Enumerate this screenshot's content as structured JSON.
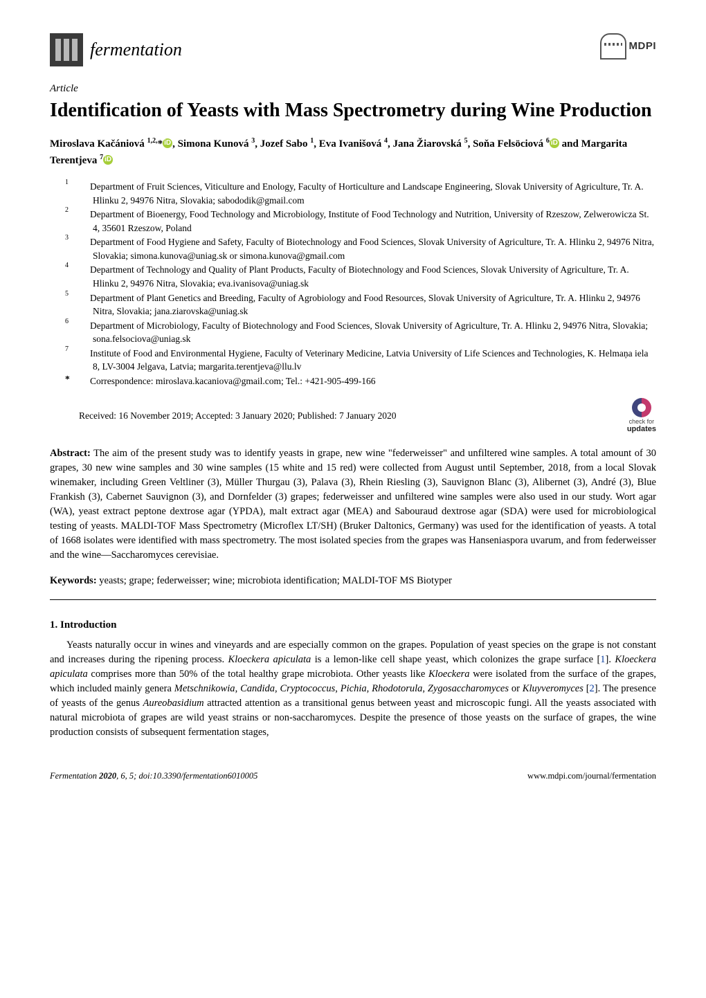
{
  "journal": {
    "name": "fermentation",
    "mdpi_text": "MDPI"
  },
  "article_type": "Article",
  "title": "Identification of Yeasts with Mass Spectrometry during Wine Production",
  "authors_html": "Miroslava Kačániová <sup>1,2,</sup>*<span class='orcid' data-name='orcid-icon' data-interactable='false'>iD</span>, Simona Kunová <sup>3</sup>, Jozef Sabo <sup>1</sup>, Eva Ivanišová <sup>4</sup>, Jana Žiarovská <sup>5</sup>, Soňa Felsöciová <sup>6</sup><span class='orcid' data-name='orcid-icon' data-interactable='false'>iD</span> and Margarita Terentjeva <sup>7</sup><span class='orcid' data-name='orcid-icon' data-interactable='false'>iD</span>",
  "affiliations": [
    {
      "num": "1",
      "text": "Department of Fruit Sciences, Viticulture and Enology, Faculty of Horticulture and Landscape Engineering, Slovak University of Agriculture, Tr. A. Hlinku 2, 94976 Nitra, Slovakia; sabododik@gmail.com"
    },
    {
      "num": "2",
      "text": "Department of Bioenergy, Food Technology and Microbiology, Institute of Food Technology and Nutrition, University of Rzeszow, Zelwerowicza St. 4, 35601 Rzeszow, Poland"
    },
    {
      "num": "3",
      "text": "Department of Food Hygiene and Safety, Faculty of Biotechnology and Food Sciences, Slovak University of Agriculture, Tr. A. Hlinku 2, 94976 Nitra, Slovakia; simona.kunova@uniag.sk or simona.kunova@gmail.com"
    },
    {
      "num": "4",
      "text": "Department of Technology and Quality of Plant Products, Faculty of Biotechnology and Food Sciences, Slovak University of Agriculture, Tr. A. Hlinku 2, 94976 Nitra, Slovakia; eva.ivanisova@uniag.sk"
    },
    {
      "num": "5",
      "text": "Department of Plant Genetics and Breeding, Faculty of Agrobiology and Food Resources, Slovak University of Agriculture, Tr. A. Hlinku 2, 94976 Nitra, Slovakia; jana.ziarovska@uniag.sk"
    },
    {
      "num": "6",
      "text": "Department of Microbiology, Faculty of Biotechnology and Food Sciences, Slovak University of Agriculture, Tr. A. Hlinku 2, 94976 Nitra, Slovakia; sona.felsociova@uniag.sk"
    },
    {
      "num": "7",
      "text": "Institute of Food and Environmental Hygiene, Faculty of Veterinary Medicine, Latvia University of Life Sciences and Technologies, K. Helmaņa iela 8, LV-3004 Jelgava, Latvia; margarita.terentjeva@llu.lv"
    }
  ],
  "correspondence": {
    "marker": "*",
    "text": "Correspondence: miroslava.kacaniova@gmail.com; Tel.: +421-905-499-166"
  },
  "dates": "Received: 16 November 2019; Accepted: 3 January 2020; Published: 7 January 2020",
  "check_updates": {
    "line1": "check for",
    "line2": "updates"
  },
  "abstract": {
    "label": "Abstract:",
    "text": " The aim of the present study was to identify yeasts in grape, new wine \"federweisser\" and unfiltered wine samples. A total amount of 30 grapes, 30 new wine samples and 30 wine samples (15 white and 15 red) were collected from August until September, 2018, from a local Slovak winemaker, including Green Veltliner (3), Müller Thurgau (3), Palava (3), Rhein Riesling (3), Sauvignon Blanc (3), Alibernet (3), André (3), Blue Frankish (3), Cabernet Sauvignon (3), and Dornfelder (3) grapes; federweisser and unfiltered wine samples were also used in our study. Wort agar (WA), yeast extract peptone dextrose agar (YPDA), malt extract agar (MEA) and Sabouraud dextrose agar (SDA) were used for microbiological testing of yeasts. MALDI-TOF Mass Spectrometry (Microflex LT/SH) (Bruker Daltonics, Germany) was used for the identification of yeasts. A total of 1668 isolates were identified with mass spectrometry. The most isolated species from the grapes was Hanseniaspora uvarum, and from federweisser and the wine—Saccharomyces cerevisiae."
  },
  "keywords": {
    "label": "Keywords:",
    "text": " yeasts; grape; federweisser; wine; microbiota identification; MALDI-TOF MS Biotyper"
  },
  "section1": {
    "heading": "1. Introduction",
    "para_html": "Yeasts naturally occur in wines and vineyards and are especially common on the grapes. Population of yeast species on the grape is not constant and increases during the ripening process. <i>Kloeckera apiculata</i> is a lemon-like cell shape yeast, which colonizes the grape surface [<span class='ref'>1</span>]. <i>Kloeckera apiculata</i> comprises more than 50% of the total healthy grape microbiota. Other yeasts like <i>Kloeckera</i> were isolated from the surface of the grapes, which included mainly genera <i>Metschnikowia</i>, <i>Candida</i>, <i>Cryptococcus</i>, <i>Pichia</i>, <i>Rhodotorula</i>, <i>Zygosaccharomyces</i> or <i>Kluyveromyces</i> [<span class='ref'>2</span>]. The presence of yeasts of the genus <i>Aureobasidium</i> attracted attention as a transitional genus between yeast and microscopic fungi. All the yeasts associated with natural microbiota of grapes are wild yeast strains or non-saccharomyces. Despite the presence of those yeasts on the surface of grapes, the wine production consists of subsequent fermentation stages,"
  },
  "footer": {
    "left_html": "<i>Fermentation</i> <b>2020</b>, <i>6</i>, 5; doi:10.3390/fermentation6010005",
    "right": "www.mdpi.com/journal/fermentation"
  },
  "colors": {
    "orcid_bg": "#A6CE39",
    "ref_link": "#0b3ea0",
    "crossmark_pink": "#c33a6d",
    "crossmark_blue": "#40457d"
  }
}
